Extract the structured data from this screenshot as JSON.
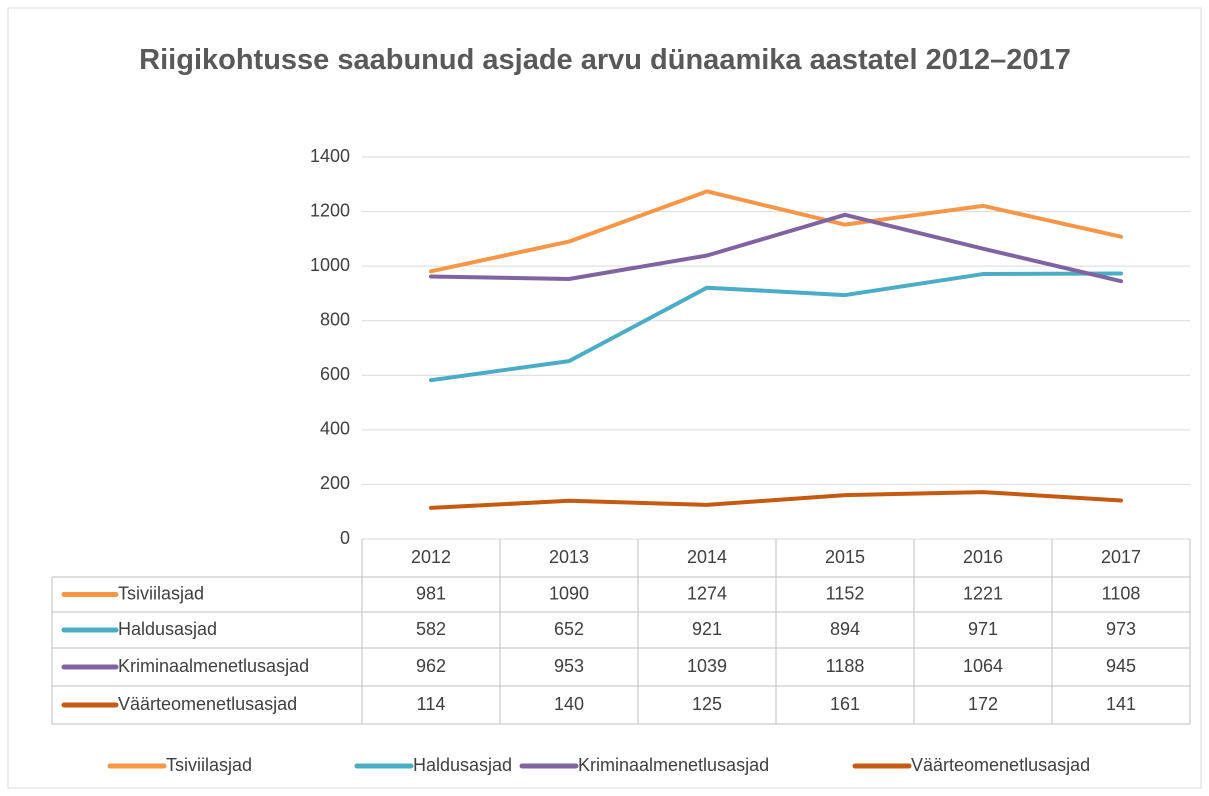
{
  "chart_data": {
    "type": "line",
    "title": "Riigikohtusse saabunud asjade arvu dünaamika aastatel 2012–2017",
    "categories": [
      "2012",
      "2013",
      "2014",
      "2015",
      "2016",
      "2017"
    ],
    "series": [
      {
        "name": "Tsiviilasjad",
        "color": "#f79646",
        "values": [
          981,
          1090,
          1274,
          1152,
          1221,
          1108
        ]
      },
      {
        "name": "Haldusasjad",
        "color": "#4bacc6",
        "values": [
          582,
          652,
          921,
          894,
          971,
          973
        ]
      },
      {
        "name": "Kriminaalmenetlusasjad",
        "color": "#8064a2",
        "values": [
          962,
          953,
          1039,
          1188,
          1064,
          945
        ]
      },
      {
        "name": "Väärteomenetlusasjad",
        "color": "#c55a11",
        "values": [
          114,
          140,
          125,
          161,
          172,
          141
        ]
      }
    ],
    "ylim": [
      0,
      1400
    ],
    "yticks": [
      0,
      200,
      400,
      600,
      800,
      1000,
      1200,
      1400
    ],
    "grid": true,
    "legend": "bottom",
    "data_table": true
  }
}
